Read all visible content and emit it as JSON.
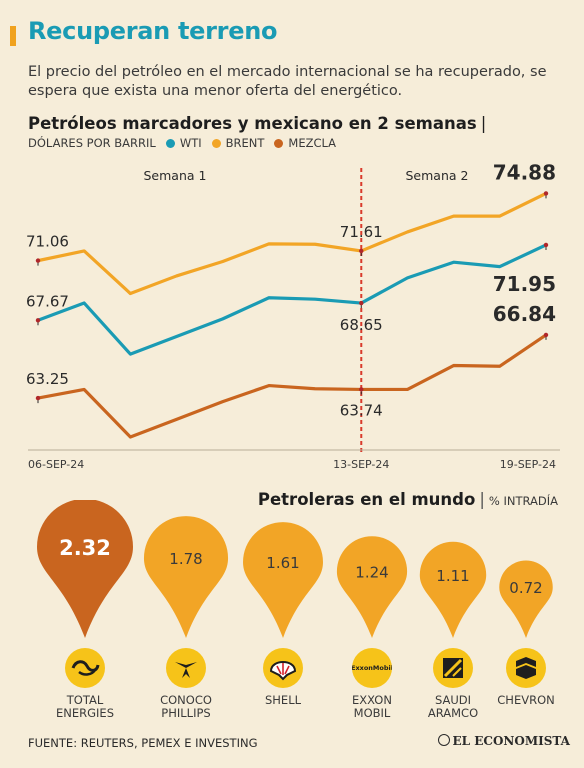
{
  "header": {
    "title": "Recuperan terreno",
    "subtitle": "El precio del petróleo en el mercado internacional se ha recuperado, se espera que exista una menor oferta del energético."
  },
  "chart_section": {
    "title": "Petróleos marcadores y mexicano en 2 semanas",
    "unit_label": "DÓLARES POR BARRIL",
    "legend": [
      "WTI",
      "BRENT",
      "MEZCLA"
    ],
    "week_labels": [
      "Semana 1",
      "Semana 2"
    ]
  },
  "chart_data": {
    "type": "line",
    "xlabel": "",
    "ylabel": "",
    "x_tick_labels": [
      "06-SEP-24",
      "13-SEP-24",
      "19-SEP-24"
    ],
    "divider_after_point": 7,
    "series": [
      {
        "name": "BRENT",
        "color": "#f2a526",
        "values": [
          71.06,
          71.61,
          69.19,
          70.19,
          71.01,
          72.01,
          71.99,
          71.61,
          72.69,
          73.59,
          73.59,
          74.88
        ],
        "labels": [
          {
            "index": 0,
            "text": "71.06",
            "bold": false
          },
          {
            "index": 7,
            "text": "71.61",
            "bold": false
          },
          {
            "index": 11,
            "text": "74.88",
            "bold": true
          }
        ]
      },
      {
        "name": "WTI",
        "color": "#1a9bb4",
        "values": [
          67.67,
          68.65,
          65.75,
          66.75,
          67.75,
          68.95,
          68.87,
          68.65,
          70.08,
          70.97,
          70.72,
          71.95
        ],
        "labels": [
          {
            "index": 0,
            "text": "67.67",
            "bold": false
          },
          {
            "index": 7,
            "text": "68.65",
            "bold": false
          },
          {
            "index": 11,
            "text": "71.95",
            "bold": true
          }
        ]
      },
      {
        "name": "MEZCLA",
        "color": "#c9651f",
        "values": [
          63.25,
          63.74,
          61.04,
          62.04,
          63.05,
          63.96,
          63.78,
          63.74,
          63.74,
          65.1,
          65.06,
          66.84
        ],
        "labels": [
          {
            "index": 0,
            "text": "63.25",
            "bold": false
          },
          {
            "index": 7,
            "text": "63.74",
            "bold": false
          },
          {
            "index": 11,
            "text": "66.84",
            "bold": true
          }
        ]
      }
    ]
  },
  "companies_section": {
    "title": "Petroleras en el mundo",
    "unit": "% INTRADÍA",
    "chart_data": {
      "type": "bar",
      "categories": [
        "TOTAL ENERGIES",
        "CONOCO PHILLIPS",
        "SHELL",
        "EXXON MOBIL",
        "SAUDI ARAMCO",
        "CHEVRON"
      ],
      "values": [
        2.32,
        1.78,
        1.61,
        1.24,
        1.11,
        0.72
      ],
      "value_labels": [
        "2.32",
        "1.78",
        "1.61",
        "1.24",
        "1.11",
        "0.72"
      ],
      "colors": [
        "#c9651f",
        "#f2a526",
        "#f2a526",
        "#f2a526",
        "#f2a526",
        "#f2a526"
      ]
    },
    "companies": [
      {
        "name": "TOTAL\nENERGIES",
        "icon": "total-energies-logo"
      },
      {
        "name": "CONOCO\nPHILLIPS",
        "icon": "conoco-phillips-logo"
      },
      {
        "name": "SHELL",
        "icon": "shell-logo"
      },
      {
        "name": "EXXON\nMOBIL",
        "icon": "exxon-mobil-logo",
        "logo_text": "ExxonMobil"
      },
      {
        "name": "SAUDI\nARAMCO",
        "icon": "saudi-aramco-logo"
      },
      {
        "name": "CHEVRON",
        "icon": "chevron-logo"
      }
    ]
  },
  "footer": {
    "source": "FUENTE: REUTERS, PEMEX E INVESTING",
    "brand": "EL ECONOMISTA"
  }
}
